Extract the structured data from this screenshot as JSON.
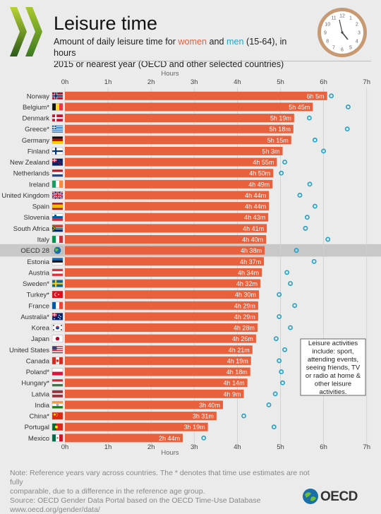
{
  "title": "Leisure time",
  "subtitle": {
    "part1": "Amount of daily leisure time for ",
    "women": "women",
    "and": " and ",
    "men": "men",
    "part2": " (15-64), in hours",
    "line2": "2015 or nearest year (OECD and other selected countries)"
  },
  "clock_numbers": [
    "12",
    "1",
    "2",
    "3",
    "4",
    "5",
    "6",
    "7",
    "8",
    "9",
    "10",
    "11"
  ],
  "colors": {
    "women": "#e8603c",
    "men": "#2aa4c6",
    "highlight": "#c8c8c8",
    "background": "#ebebeb"
  },
  "note": {
    "line1": "Note: Reference years vary across countries. The * denotes that time use estimates are not fully",
    "line2": "comparable, due to a difference in the reference age group.",
    "line3": "Source: OECD Gender Data Portal based on the OECD Time-Use Database",
    "line4": "www.oecd.org/gender/data/"
  },
  "footer_logo": "OECD",
  "chart_data": {
    "type": "bar",
    "orientation": "horizontal",
    "axis_label": "Hours",
    "unit": "hours",
    "xlim": [
      0,
      7
    ],
    "ticks": [
      "0h",
      "1h",
      "2h",
      "3h",
      "4h",
      "5h",
      "6h",
      "7h"
    ],
    "grid": true,
    "highlight_category": "OECD 28",
    "annotation": "Leisure activities include: sport, attending events, seeing friends, TV or radio at home & other leisure activities.",
    "categories": [
      "Norway",
      "Belgium*",
      "Denmark",
      "Greece*",
      "Germany",
      "Finland",
      "New Zealand",
      "Netherlands",
      "Ireland",
      "United Kingdom",
      "Spain",
      "Slovenia",
      "South Africa",
      "Italy",
      "OECD 28",
      "Estonia",
      "Austria",
      "Sweden*",
      "Turkey*",
      "France",
      "Australia*",
      "Korea",
      "Japan",
      "United States",
      "Canada",
      "Poland*",
      "Hungary*",
      "Latvia",
      "India",
      "China*",
      "Portugal",
      "Mexico"
    ],
    "flags": [
      "norway",
      "belgium",
      "denmark",
      "greece",
      "germany",
      "finland",
      "new-zealand",
      "netherlands",
      "ireland",
      "united-kingdom",
      "spain",
      "slovenia",
      "south-africa",
      "italy",
      "oecd",
      "estonia",
      "austria",
      "sweden",
      "turkey",
      "france",
      "australia",
      "korea",
      "japan",
      "united-states",
      "canada",
      "poland",
      "hungary",
      "latvia",
      "india",
      "china",
      "portugal",
      "mexico"
    ],
    "series": [
      {
        "name": "women",
        "labels": [
          "6h 5m",
          "5h 45m",
          "5h 19m",
          "5h 18m",
          "5h 15m",
          "5h 3m",
          "4h 55m",
          "4h 50m",
          "4h 49m",
          "4h 44m",
          "4h 44m",
          "4h 43m",
          "4h 41m",
          "4h 40m",
          "4h 38m",
          "4h 37m",
          "4h 34m",
          "4h 32m",
          "4h 30m",
          "4h 29m",
          "4h 29m",
          "4h 28m",
          "4h 26m",
          "4h 21m",
          "4h 19m",
          "4h 18m",
          "4h 14m",
          "4h 9m",
          "3h 40m",
          "3h 31m",
          "3h 19m",
          "2h 44m"
        ],
        "values": [
          6.083,
          5.75,
          5.317,
          5.3,
          5.25,
          5.05,
          4.917,
          4.833,
          4.817,
          4.733,
          4.733,
          4.717,
          4.683,
          4.667,
          4.633,
          4.617,
          4.567,
          4.533,
          4.5,
          4.483,
          4.483,
          4.467,
          4.433,
          4.35,
          4.317,
          4.3,
          4.233,
          4.15,
          3.667,
          3.517,
          3.317,
          2.733
        ]
      },
      {
        "name": "men",
        "values": [
          6.18,
          6.57,
          5.67,
          6.55,
          5.8,
          6.0,
          5.1,
          5.02,
          5.68,
          5.45,
          5.8,
          5.62,
          5.58,
          6.1,
          5.37,
          5.78,
          5.15,
          5.23,
          4.97,
          5.33,
          4.97,
          5.23,
          4.9,
          5.1,
          4.97,
          5.02,
          5.05,
          4.88,
          4.73,
          4.15,
          4.85,
          3.22
        ]
      }
    ]
  }
}
